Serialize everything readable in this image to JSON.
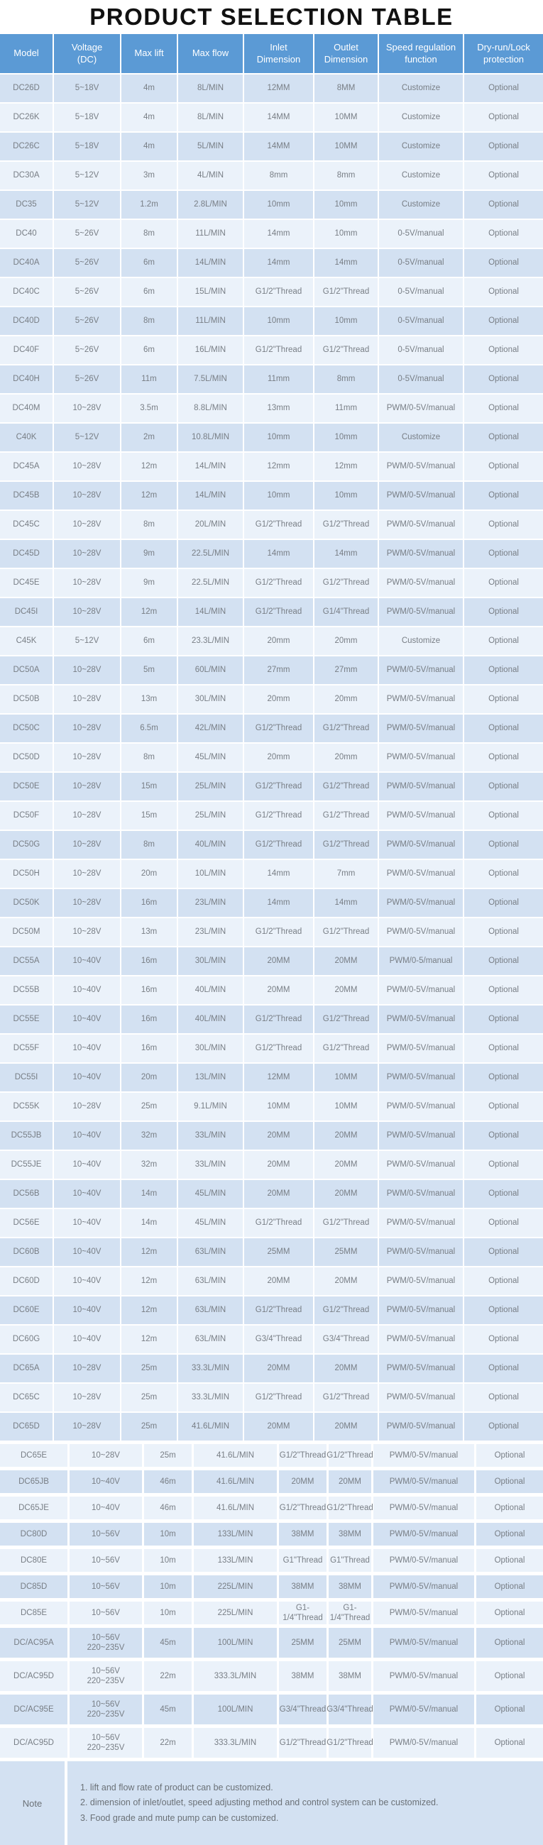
{
  "title": "PRODUCT SELECTION TABLE",
  "colors": {
    "header_bg": "#5b9ad5",
    "header_text": "#ffffff",
    "row_dark": "#d3e1f2",
    "row_light": "#ebf2fa",
    "cell_text": "#787e85",
    "note_bg": "#d3e1f2"
  },
  "table": {
    "headers": [
      [
        "Model"
      ],
      [
        "Voltage",
        "(DC)"
      ],
      [
        "Max lift"
      ],
      [
        "Max flow"
      ],
      [
        "Inlet",
        "Dimension"
      ],
      [
        "Outlet",
        "Dimension"
      ],
      [
        "Speed regulation",
        "function"
      ],
      [
        "Dry-run/Lock",
        "protection"
      ]
    ],
    "rows": [
      [
        "DC26D",
        "5~18V",
        "4m",
        "8L/MIN",
        "12MM",
        "8MM",
        "Customize",
        "Optional"
      ],
      [
        "DC26K",
        "5~18V",
        "4m",
        "8L/MIN",
        "14MM",
        "10MM",
        "Customize",
        "Optional"
      ],
      [
        "DC26C",
        "5~18V",
        "4m",
        "5L/MIN",
        "14MM",
        "10MM",
        "Customize",
        "Optional"
      ],
      [
        "DC30A",
        "5~12V",
        "3m",
        "4L/MIN",
        "8mm",
        "8mm",
        "Customize",
        "Optional"
      ],
      [
        "DC35",
        "5~12V",
        "1.2m",
        "2.8L/MIN",
        "10mm",
        "10mm",
        "Customize",
        "Optional"
      ],
      [
        "DC40",
        "5~26V",
        "8m",
        "11L/MIN",
        "14mm",
        "10mm",
        "0-5V/manual",
        "Optional"
      ],
      [
        "DC40A",
        "5~26V",
        "6m",
        "14L/MIN",
        "14mm",
        "14mm",
        "0-5V/manual",
        "Optional"
      ],
      [
        "DC40C",
        "5~26V",
        "6m",
        "15L/MIN",
        "G1/2\"Thread",
        "G1/2\"Thread",
        "0-5V/manual",
        "Optional"
      ],
      [
        "DC40D",
        "5~26V",
        "8m",
        "11L/MIN",
        "10mm",
        "10mm",
        "0-5V/manual",
        "Optional"
      ],
      [
        "DC40F",
        "5~26V",
        "6m",
        "16L/MIN",
        "G1/2\"Thread",
        "G1/2\"Thread",
        "0-5V/manual",
        "Optional"
      ],
      [
        "DC40H",
        "5~26V",
        "11m",
        "7.5L/MIN",
        "11mm",
        "8mm",
        "0-5V/manual",
        "Optional"
      ],
      [
        "DC40M",
        "10~28V",
        "3.5m",
        "8.8L/MIN",
        "13mm",
        "11mm",
        "PWM/0-5V/manual",
        "Optional"
      ],
      [
        "C40K",
        "5~12V",
        "2m",
        "10.8L/MIN",
        "10mm",
        "10mm",
        "Customize",
        "Optional"
      ],
      [
        "DC45A",
        "10~28V",
        "12m",
        "14L/MIN",
        "12mm",
        "12mm",
        "PWM/0-5V/manual",
        "Optional"
      ],
      [
        "DC45B",
        "10~28V",
        "12m",
        "14L/MIN",
        "10mm",
        "10mm",
        "PWM/0-5V/manual",
        "Optional"
      ],
      [
        "DC45C",
        "10~28V",
        "8m",
        "20L/MIN",
        "G1/2\"Thread",
        "G1/2\"Thread",
        "PWM/0-5V/manual",
        "Optional"
      ],
      [
        "DC45D",
        "10~28V",
        "9m",
        "22.5L/MIN",
        "14mm",
        "14mm",
        "PWM/0-5V/manual",
        "Optional"
      ],
      [
        "DC45E",
        "10~28V",
        "9m",
        "22.5L/MIN",
        "G1/2\"Thread",
        "G1/2\"Thread",
        "PWM/0-5V/manual",
        "Optional"
      ],
      [
        "DC45I",
        "10~28V",
        "12m",
        "14L/MIN",
        "G1/2\"Thread",
        "G1/4\"Thread",
        "PWM/0-5V/manual",
        "Optional"
      ],
      [
        "C45K",
        "5~12V",
        "6m",
        "23.3L/MIN",
        "20mm",
        "20mm",
        "Customize",
        "Optional"
      ],
      [
        "DC50A",
        "10~28V",
        "5m",
        "60L/MIN",
        "27mm",
        "27mm",
        "PWM/0-5V/manual",
        "Optional"
      ],
      [
        "DC50B",
        "10~28V",
        "13m",
        "30L/MIN",
        "20mm",
        "20mm",
        "PWM/0-5V/manual",
        "Optional"
      ],
      [
        "DC50C",
        "10~28V",
        "6.5m",
        "42L/MIN",
        "G1/2\"Thread",
        "G1/2\"Thread",
        "PWM/0-5V/manual",
        "Optional"
      ],
      [
        "DC50D",
        "10~28V",
        "8m",
        "45L/MIN",
        "20mm",
        "20mm",
        "PWM/0-5V/manual",
        "Optional"
      ],
      [
        "DC50E",
        "10~28V",
        "15m",
        "25L/MIN",
        "G1/2\"Thread",
        "G1/2\"Thread",
        "PWM/0-5V/manual",
        "Optional"
      ],
      [
        "DC50F",
        "10~28V",
        "15m",
        "25L/MIN",
        "G1/2\"Thread",
        "G1/2\"Thread",
        "PWM/0-5V/manual",
        "Optional"
      ],
      [
        "DC50G",
        "10~28V",
        "8m",
        "40L/MIN",
        "G1/2\"Thread",
        "G1/2\"Thread",
        "PWM/0-5V/manual",
        "Optional"
      ],
      [
        "DC50H",
        "10~28V",
        "20m",
        "10L/MIN",
        "14mm",
        "7mm",
        "PWM/0-5V/manual",
        "Optional"
      ],
      [
        "DC50K",
        "10~28V",
        "16m",
        "23L/MIN",
        "14mm",
        "14mm",
        "PWM/0-5V/manual",
        "Optional"
      ],
      [
        "DC50M",
        "10~28V",
        "13m",
        "23L/MIN",
        "G1/2\"Thread",
        "G1/2\"Thread",
        "PWM/0-5V/manual",
        "Optional"
      ],
      [
        "DC55A",
        "10~40V",
        "16m",
        "30L/MIN",
        "20MM",
        "20MM",
        "PWM/0-5/manual",
        "Optional"
      ],
      [
        "DC55B",
        "10~40V",
        "16m",
        "40L/MIN",
        "20MM",
        "20MM",
        "PWM/0-5V/manual",
        "Optional"
      ],
      [
        "DC55E",
        "10~40V",
        "16m",
        "40L/MIN",
        "G1/2\"Thread",
        "G1/2\"Thread",
        "PWM/0-5V/manual",
        "Optional"
      ],
      [
        "DC55F",
        "10~40V",
        "16m",
        "30L/MIN",
        "G1/2\"Thread",
        "G1/2\"Thread",
        "PWM/0-5V/manual",
        "Optional"
      ],
      [
        "DC55I",
        "10~40V",
        "20m",
        "13L/MIN",
        "12MM",
        "10MM",
        "PWM/0-5V/manual",
        "Optional"
      ],
      [
        "DC55K",
        "10~28V",
        "25m",
        "9.1L/MIN",
        "10MM",
        "10MM",
        "PWM/0-5V/manual",
        "Optional"
      ],
      [
        "DC55JB",
        "10~40V",
        "32m",
        "33L/MIN",
        "20MM",
        "20MM",
        "PWM/0-5V/manual",
        "Optional"
      ],
      [
        "DC55JE",
        "10~40V",
        "32m",
        "33L/MIN",
        "20MM",
        "20MM",
        "PWM/0-5V/manual",
        "Optional"
      ],
      [
        "DC56B",
        "10~40V",
        "14m",
        "45L/MIN",
        "20MM",
        "20MM",
        "PWM/0-5V/manual",
        "Optional"
      ],
      [
        "DC56E",
        "10~40V",
        "14m",
        "45L/MIN",
        "G1/2\"Thread",
        "G1/2\"Thread",
        "PWM/0-5V/manual",
        "Optional"
      ],
      [
        "DC60B",
        "10~40V",
        "12m",
        "63L/MIN",
        "25MM",
        "25MM",
        "PWM/0-5V/manual",
        "Optional"
      ],
      [
        "DC60D",
        "10~40V",
        "12m",
        "63L/MIN",
        "20MM",
        "20MM",
        "PWM/0-5V/manual",
        "Optional"
      ],
      [
        "DC60E",
        "10~40V",
        "12m",
        "63L/MIN",
        "G1/2\"Thread",
        "G1/2\"Thread",
        "PWM/0-5V/manual",
        "Optional"
      ],
      [
        "DC60G",
        "10~40V",
        "12m",
        "63L/MIN",
        "G3/4\"Thread",
        "G3/4\"Thread",
        "PWM/0-5V/manual",
        "Optional"
      ],
      [
        "DC65A",
        "10~28V",
        "25m",
        "33.3L/MIN",
        "20MM",
        "20MM",
        "PWM/0-5V/manual",
        "Optional"
      ],
      [
        "DC65C",
        "10~28V",
        "25m",
        "33.3L/MIN",
        "G1/2\"Thread",
        "G1/2\"Thread",
        "PWM/0-5V/manual",
        "Optional"
      ],
      [
        "DC65D",
        "10~28V",
        "25m",
        "41.6L/MIN",
        "20MM",
        "20MM",
        "PWM/0-5V/manual",
        "Optional"
      ]
    ],
    "rows_wide": [
      [
        "DC65E",
        "10~28V",
        "25m",
        "41.6L/MIN",
        "G1/2\"Thread",
        "G1/2\"Thread",
        "PWM/0-5V/manual",
        "Optional"
      ],
      [
        "DC65JB",
        "10~40V",
        "46m",
        "41.6L/MIN",
        "20MM",
        "20MM",
        "PWM/0-5V/manual",
        "Optional"
      ],
      [
        "DC65JE",
        "10~40V",
        "46m",
        "41.6L/MIN",
        "G1/2\"Thread",
        "G1/2\"Thread",
        "PWM/0-5V/manual",
        "Optional"
      ],
      [
        "DC80D",
        "10~56V",
        "10m",
        "133L/MIN",
        "38MM",
        "38MM",
        "PWM/0-5V/manual",
        "Optional"
      ],
      [
        "DC80E",
        "10~56V",
        "10m",
        "133L/MIN",
        "G1\"Thread",
        "G1\"Thread",
        "PWM/0-5V/manual",
        "Optional"
      ],
      [
        "DC85D",
        "10~56V",
        "10m",
        "225L/MIN",
        "38MM",
        "38MM",
        "PWM/0-5V/manual",
        "Optional"
      ],
      [
        "DC85E",
        "10~56V",
        "10m",
        "225L/MIN",
        "G1-1/4\"Thread",
        "G1-1/4\"Thread",
        "PWM/0-5V/manual",
        "Optional"
      ],
      [
        "DC/AC95A",
        "10~56V\n220~235V",
        "45m",
        "100L/MIN",
        "25MM",
        "25MM",
        "PWM/0-5V/manual",
        "Optional"
      ],
      [
        "DC/AC95D",
        "10~56V\n220~235V",
        "22m",
        "333.3L/MIN",
        "38MM",
        "38MM",
        "PWM/0-5V/manual",
        "Optional"
      ],
      [
        "DC/AC95E",
        "10~56V\n220~235V",
        "45m",
        "100L/MIN",
        "G3/4\"Thread",
        "G3/4\"Thread",
        "PWM/0-5V/manual",
        "Optional"
      ],
      [
        "DC/AC95D",
        "10~56V\n220~235V",
        "22m",
        "333.3L/MIN",
        "G1/2\"Thread",
        "G1/2\"Thread",
        "PWM/0-5V/manual",
        "Optional"
      ]
    ]
  },
  "note": {
    "label": "Note",
    "items": [
      "1. lift and flow rate of product can be customized.",
      "2. dimension of inlet/outlet, speed adjusting method and control system can be customized.",
      "3. Food grade and mute pump can be customized."
    ]
  }
}
